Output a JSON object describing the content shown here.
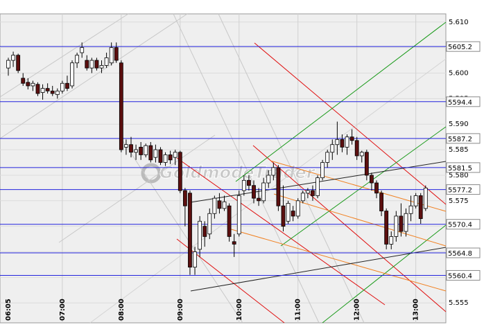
{
  "chart_data": {
    "type": "candlestick",
    "watermark": "GoldmodeTrader",
    "categories": [
      "06:05",
      null,
      null,
      null,
      null,
      null,
      null,
      null,
      null,
      null,
      null,
      "07:00",
      null,
      null,
      null,
      null,
      null,
      null,
      null,
      null,
      null,
      null,
      null,
      "08:00",
      null,
      null,
      null,
      null,
      null,
      null,
      null,
      null,
      null,
      null,
      null,
      "09:00",
      null,
      null,
      null,
      null,
      null,
      null,
      null,
      null,
      null,
      null,
      null,
      "10:00",
      null,
      null,
      null,
      null,
      null,
      null,
      null,
      null,
      null,
      null,
      null,
      "11:00",
      null,
      null,
      null,
      null,
      null,
      null,
      null,
      null,
      null,
      null,
      null,
      "12:00",
      null,
      null,
      null,
      null,
      null,
      null,
      null,
      null,
      null,
      null,
      null,
      "13:00",
      null,
      null
    ],
    "open": [
      5.601,
      5.6025,
      5.6035,
      5.599,
      5.5982,
      5.5975,
      5.5978,
      5.5962,
      5.597,
      5.5965,
      5.5958,
      5.5965,
      5.598,
      5.5975,
      5.602,
      5.604,
      5.6025,
      5.601,
      5.6025,
      5.601,
      5.6015,
      5.602,
      5.605,
      5.602,
      5.5855,
      5.586,
      5.5845,
      5.5855,
      5.584,
      5.5858,
      5.5835,
      5.585,
      5.5825,
      5.584,
      5.5835,
      5.5845,
      5.577,
      5.5765,
      5.562,
      5.5655,
      5.57,
      5.5685,
      5.5725,
      5.575,
      5.5735,
      5.574,
      5.567,
      5.5685,
      5.577,
      5.579,
      5.578,
      5.5755,
      5.575,
      5.5785,
      5.58,
      5.5815,
      5.574,
      5.571,
      5.573,
      5.572,
      5.575,
      5.5765,
      5.577,
      5.576,
      5.5795,
      5.5825,
      5.5845,
      5.586,
      5.587,
      5.5855,
      5.5875,
      5.5868,
      5.5838,
      5.5845,
      5.58,
      5.5785,
      5.5765,
      5.573,
      5.5665,
      5.568,
      5.572,
      5.569,
      5.5725,
      5.574,
      5.576,
      5.5735
    ],
    "high": [
      5.603,
      5.6042,
      5.6038,
      5.6,
      5.599,
      5.5985,
      5.5982,
      5.5978,
      5.598,
      5.5975,
      5.597,
      5.5985,
      5.5995,
      5.6025,
      5.604,
      5.606,
      5.6035,
      5.603,
      5.603,
      5.6025,
      5.604,
      5.606,
      5.606,
      5.6025,
      5.587,
      5.5875,
      5.586,
      5.5865,
      5.5862,
      5.5865,
      5.586,
      5.5855,
      5.5845,
      5.5848,
      5.585,
      5.5848,
      5.5775,
      5.577,
      5.566,
      5.572,
      5.571,
      5.5735,
      5.576,
      5.5765,
      5.576,
      5.5745,
      5.5685,
      5.577,
      5.58,
      5.58,
      5.579,
      5.5775,
      5.5795,
      5.581,
      5.5825,
      5.582,
      5.578,
      5.575,
      5.574,
      5.5755,
      5.577,
      5.5775,
      5.578,
      5.58,
      5.583,
      5.585,
      5.587,
      5.5905,
      5.588,
      5.588,
      5.589,
      5.5875,
      5.5848,
      5.585,
      5.5805,
      5.579,
      5.577,
      5.5735,
      5.569,
      5.573,
      5.5745,
      5.5735,
      5.576,
      5.5765,
      5.5765,
      5.578
    ],
    "low": [
      5.5995,
      5.6012,
      5.6,
      5.5975,
      5.5968,
      5.5965,
      5.5955,
      5.5948,
      5.596,
      5.5955,
      5.595,
      5.596,
      5.5965,
      5.597,
      5.601,
      5.603,
      5.6005,
      5.6,
      5.6005,
      5.6,
      5.601,
      5.6015,
      5.602,
      5.5845,
      5.584,
      5.5835,
      5.583,
      5.583,
      5.5835,
      5.5825,
      5.5825,
      5.582,
      5.5818,
      5.5822,
      5.582,
      5.5765,
      5.57,
      5.5605,
      5.5605,
      5.564,
      5.566,
      5.5675,
      5.5715,
      5.5725,
      5.573,
      5.567,
      5.564,
      5.568,
      5.576,
      5.577,
      5.5745,
      5.574,
      5.5745,
      5.5775,
      5.579,
      5.573,
      5.569,
      5.5705,
      5.571,
      5.5715,
      5.5745,
      5.5755,
      5.575,
      5.5755,
      5.579,
      5.5815,
      5.583,
      5.584,
      5.5845,
      5.584,
      5.586,
      5.583,
      5.5825,
      5.579,
      5.577,
      5.5755,
      5.572,
      5.5655,
      5.5655,
      5.567,
      5.568,
      5.568,
      5.571,
      5.5735,
      5.5705,
      5.573
    ],
    "close": [
      5.6025,
      5.6035,
      5.6005,
      5.598,
      5.5975,
      5.598,
      5.596,
      5.597,
      5.5965,
      5.596,
      5.5965,
      5.598,
      5.597,
      5.602,
      5.6035,
      5.605,
      5.601,
      5.6025,
      5.601,
      5.6015,
      5.603,
      5.605,
      5.6025,
      5.585,
      5.586,
      5.5845,
      5.585,
      5.584,
      5.5858,
      5.583,
      5.585,
      5.5825,
      5.584,
      5.583,
      5.5845,
      5.577,
      5.574,
      5.562,
      5.565,
      5.571,
      5.568,
      5.5725,
      5.5755,
      5.5735,
      5.5748,
      5.568,
      5.5665,
      5.576,
      5.579,
      5.578,
      5.5755,
      5.575,
      5.5785,
      5.58,
      5.5815,
      5.574,
      5.57,
      5.5745,
      5.572,
      5.575,
      5.5765,
      5.577,
      5.576,
      5.5795,
      5.5825,
      5.5845,
      5.586,
      5.587,
      5.5855,
      5.5875,
      5.5868,
      5.5838,
      5.5845,
      5.58,
      5.5785,
      5.5765,
      5.573,
      5.5665,
      5.568,
      5.572,
      5.569,
      5.5725,
      5.574,
      5.576,
      5.5715,
      5.5775
    ],
    "up_color": "#ffffff",
    "down_color": "#5c0f0f",
    "ylim": [
      5.5511,
      5.6116
    ],
    "yticks": [
      {
        "value": 5.61,
        "label": "5.610"
      },
      5.605,
      {
        "value": 5.6,
        "label": "5.600"
      },
      5.595,
      {
        "value": 5.59,
        "label": "5.590"
      },
      5.585,
      {
        "value": 5.58,
        "label": "5.580"
      },
      5.575,
      {
        "value": 5.57,
        "label": "5.570"
      },
      5.565,
      {
        "value": 5.56,
        "label": "5.560"
      },
      5.555
    ],
    "levels": [
      {
        "value": 5.6052,
        "label": "5605.2"
      },
      {
        "value": 5.5944,
        "label": "5594.4"
      },
      {
        "value": 5.5872,
        "label": "5587.2"
      },
      {
        "value": 5.5815,
        "label": "5581.5"
      },
      {
        "value": 5.5772,
        "label": "5577.2"
      },
      {
        "value": 5.5704,
        "label": "5570.4"
      },
      {
        "value": 5.5648,
        "label": "5564.8"
      },
      {
        "value": 5.5604,
        "label": "5560.4"
      }
    ],
    "level_color": "#2222dd",
    "grid": true
  }
}
